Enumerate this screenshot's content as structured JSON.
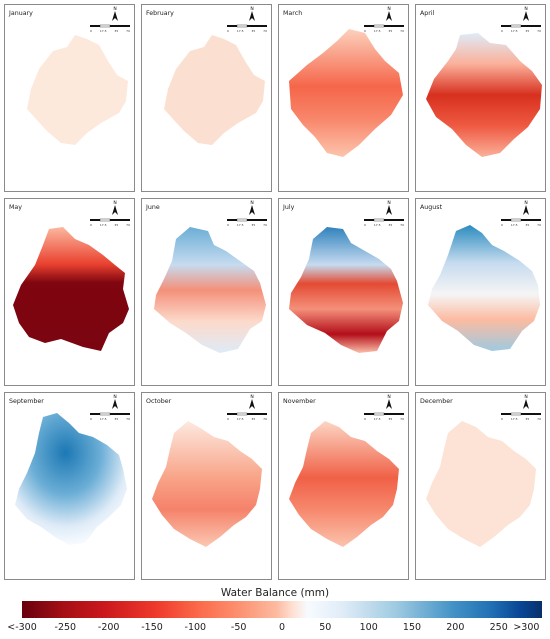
{
  "panels": [
    {
      "month": "January"
    },
    {
      "month": "February"
    },
    {
      "month": "March"
    },
    {
      "month": "April"
    },
    {
      "month": "May"
    },
    {
      "month": "June"
    },
    {
      "month": "July"
    },
    {
      "month": "August"
    },
    {
      "month": "September"
    },
    {
      "month": "October"
    },
    {
      "month": "November"
    },
    {
      "month": "December"
    }
  ],
  "north_label": "N",
  "scale_labels": [
    "0",
    "17.5",
    "35",
    "70"
  ],
  "legend": {
    "title": "Water Balance (mm)",
    "ticks": [
      "<-300",
      "-250",
      "-200",
      "-150",
      "-100",
      "-50",
      "0",
      "50",
      "100",
      "150",
      "200",
      "250",
      ">300"
    ],
    "colors": {
      "deficit_extreme": "#67000d",
      "deficit": "#ef3b2c",
      "neutral": "#f7fbff",
      "surplus": "#4292c6",
      "surplus_extreme": "#08306b"
    }
  }
}
